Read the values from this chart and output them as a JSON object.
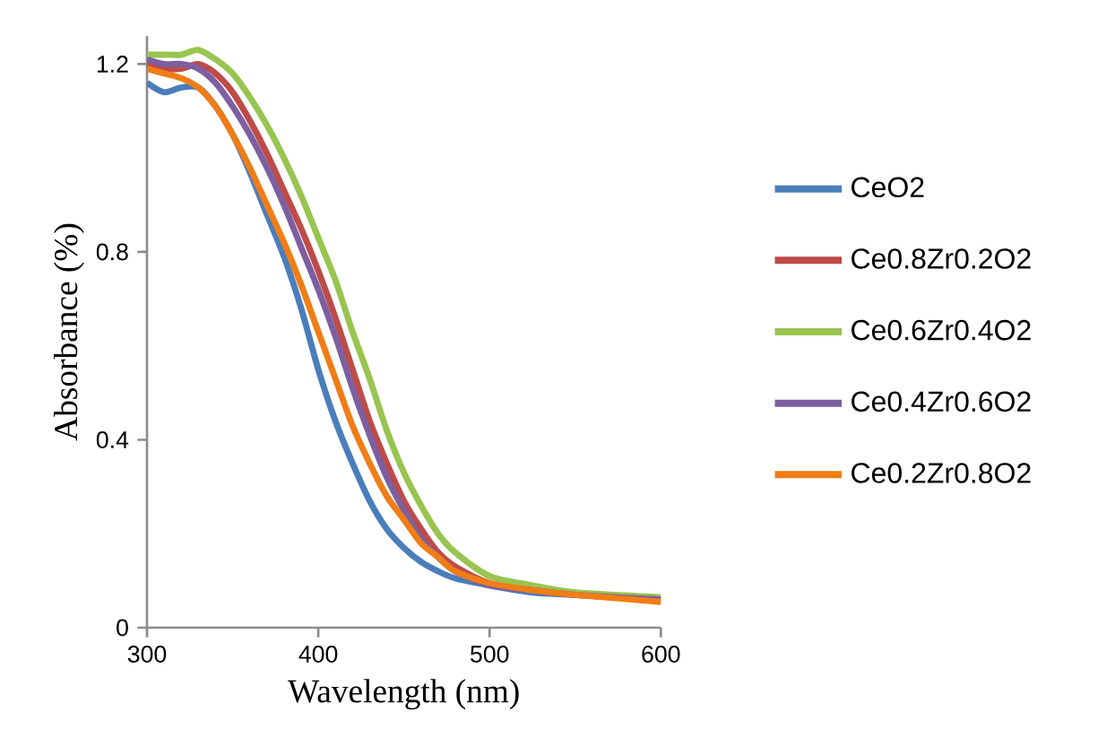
{
  "chart_data": {
    "type": "line",
    "xlabel": "Wavelength (nm)",
    "ylabel": "Absorbance (%)",
    "xlim": [
      300,
      600
    ],
    "xticks": [
      300,
      400,
      500,
      600
    ],
    "ylim": [
      0,
      1.26
    ],
    "yticks": [
      0,
      {
        "value": 0.4,
        "label": "0.4"
      },
      {
        "value": 0.8,
        "label": "0.8"
      },
      {
        "value": 1.2,
        "label": "1.2"
      }
    ],
    "x": [
      300,
      310,
      320,
      330,
      340,
      350,
      360,
      370,
      380,
      390,
      400,
      410,
      420,
      430,
      440,
      450,
      460,
      470,
      480,
      500,
      525,
      550,
      600
    ],
    "grid": false,
    "legend": "right",
    "marker": "none",
    "line_style": "solid",
    "series": [
      {
        "name": "CeO2",
        "color": "#4a7ebb",
        "values": [
          1.16,
          1.14,
          1.15,
          1.15,
          1.11,
          1.05,
          0.97,
          0.88,
          0.79,
          0.68,
          0.55,
          0.44,
          0.35,
          0.27,
          0.21,
          0.17,
          0.14,
          0.12,
          0.105,
          0.09,
          0.075,
          0.07,
          0.06
        ]
      },
      {
        "name": "Ce0.8Zr0.2O2",
        "color": "#be4b48",
        "values": [
          1.2,
          1.19,
          1.19,
          1.2,
          1.18,
          1.14,
          1.08,
          1.01,
          0.93,
          0.85,
          0.76,
          0.66,
          0.55,
          0.44,
          0.35,
          0.27,
          0.21,
          0.16,
          0.13,
          0.095,
          0.08,
          0.07,
          0.06
        ]
      },
      {
        "name": "Ce0.6Zr0.4O2",
        "color": "#98c450",
        "values": [
          1.22,
          1.22,
          1.22,
          1.23,
          1.21,
          1.18,
          1.13,
          1.07,
          1.0,
          0.92,
          0.83,
          0.74,
          0.63,
          0.53,
          0.42,
          0.33,
          0.26,
          0.2,
          0.16,
          0.11,
          0.09,
          0.075,
          0.065
        ]
      },
      {
        "name": "Ce0.4Zr0.6O2",
        "color": "#7d5fa0",
        "values": [
          1.21,
          1.2,
          1.2,
          1.19,
          1.16,
          1.11,
          1.05,
          0.98,
          0.9,
          0.81,
          0.72,
          0.62,
          0.51,
          0.41,
          0.32,
          0.25,
          0.19,
          0.15,
          0.12,
          0.09,
          0.08,
          0.07,
          0.06
        ]
      },
      {
        "name": "Ce0.2Zr0.8O2",
        "color": "#f07d16",
        "values": [
          1.19,
          1.18,
          1.17,
          1.15,
          1.11,
          1.05,
          0.98,
          0.9,
          0.82,
          0.73,
          0.63,
          0.53,
          0.43,
          0.35,
          0.28,
          0.23,
          0.18,
          0.15,
          0.12,
          0.095,
          0.08,
          0.07,
          0.055
        ]
      }
    ]
  }
}
